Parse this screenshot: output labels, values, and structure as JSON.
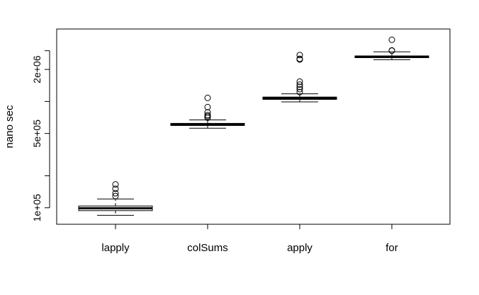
{
  "chart_data": {
    "type": "boxplot",
    "title": "",
    "xlabel": "",
    "ylabel": "nano sec",
    "y_scale": "log",
    "ylim": [
      70000,
      4800000
    ],
    "y_ticks": [
      100000,
      200000,
      500000,
      1000000,
      2000000,
      3000000
    ],
    "y_tick_labels": [
      "1e+05",
      "",
      "5e+05",
      "",
      "2e+06",
      ""
    ],
    "categories": [
      "lapply",
      "colSums",
      "apply",
      "for"
    ],
    "boxes": [
      {
        "category": "lapply",
        "whisker_low": 85000,
        "q1": 94000,
        "median": 99000,
        "q3": 104000,
        "whisker_high": 121000,
        "outliers": [
          129000,
          137000,
          151000,
          166000
        ]
      },
      {
        "category": "colSums",
        "whisker_low": 560000,
        "q1": 594000,
        "median": 609000,
        "q3": 622000,
        "whisker_high": 671000,
        "outliers": [
          703000,
          725000,
          744000,
          790000,
          885000,
          1080000
        ]
      },
      {
        "category": "apply",
        "whisker_low": 990000,
        "q1": 1045000,
        "median": 1073000,
        "q3": 1100000,
        "whisker_high": 1180000,
        "outliers": [
          1225000,
          1305000,
          1370000,
          1440000,
          1535000,
          2480000,
          2520000,
          2730000
        ]
      },
      {
        "category": "for",
        "whisker_low": 2470000,
        "q1": 2580000,
        "median": 2630000,
        "q3": 2680000,
        "whisker_high": 2930000,
        "outliers": [
          3000000,
          3020000,
          3800000
        ]
      }
    ],
    "grid": false,
    "legend": "none"
  }
}
